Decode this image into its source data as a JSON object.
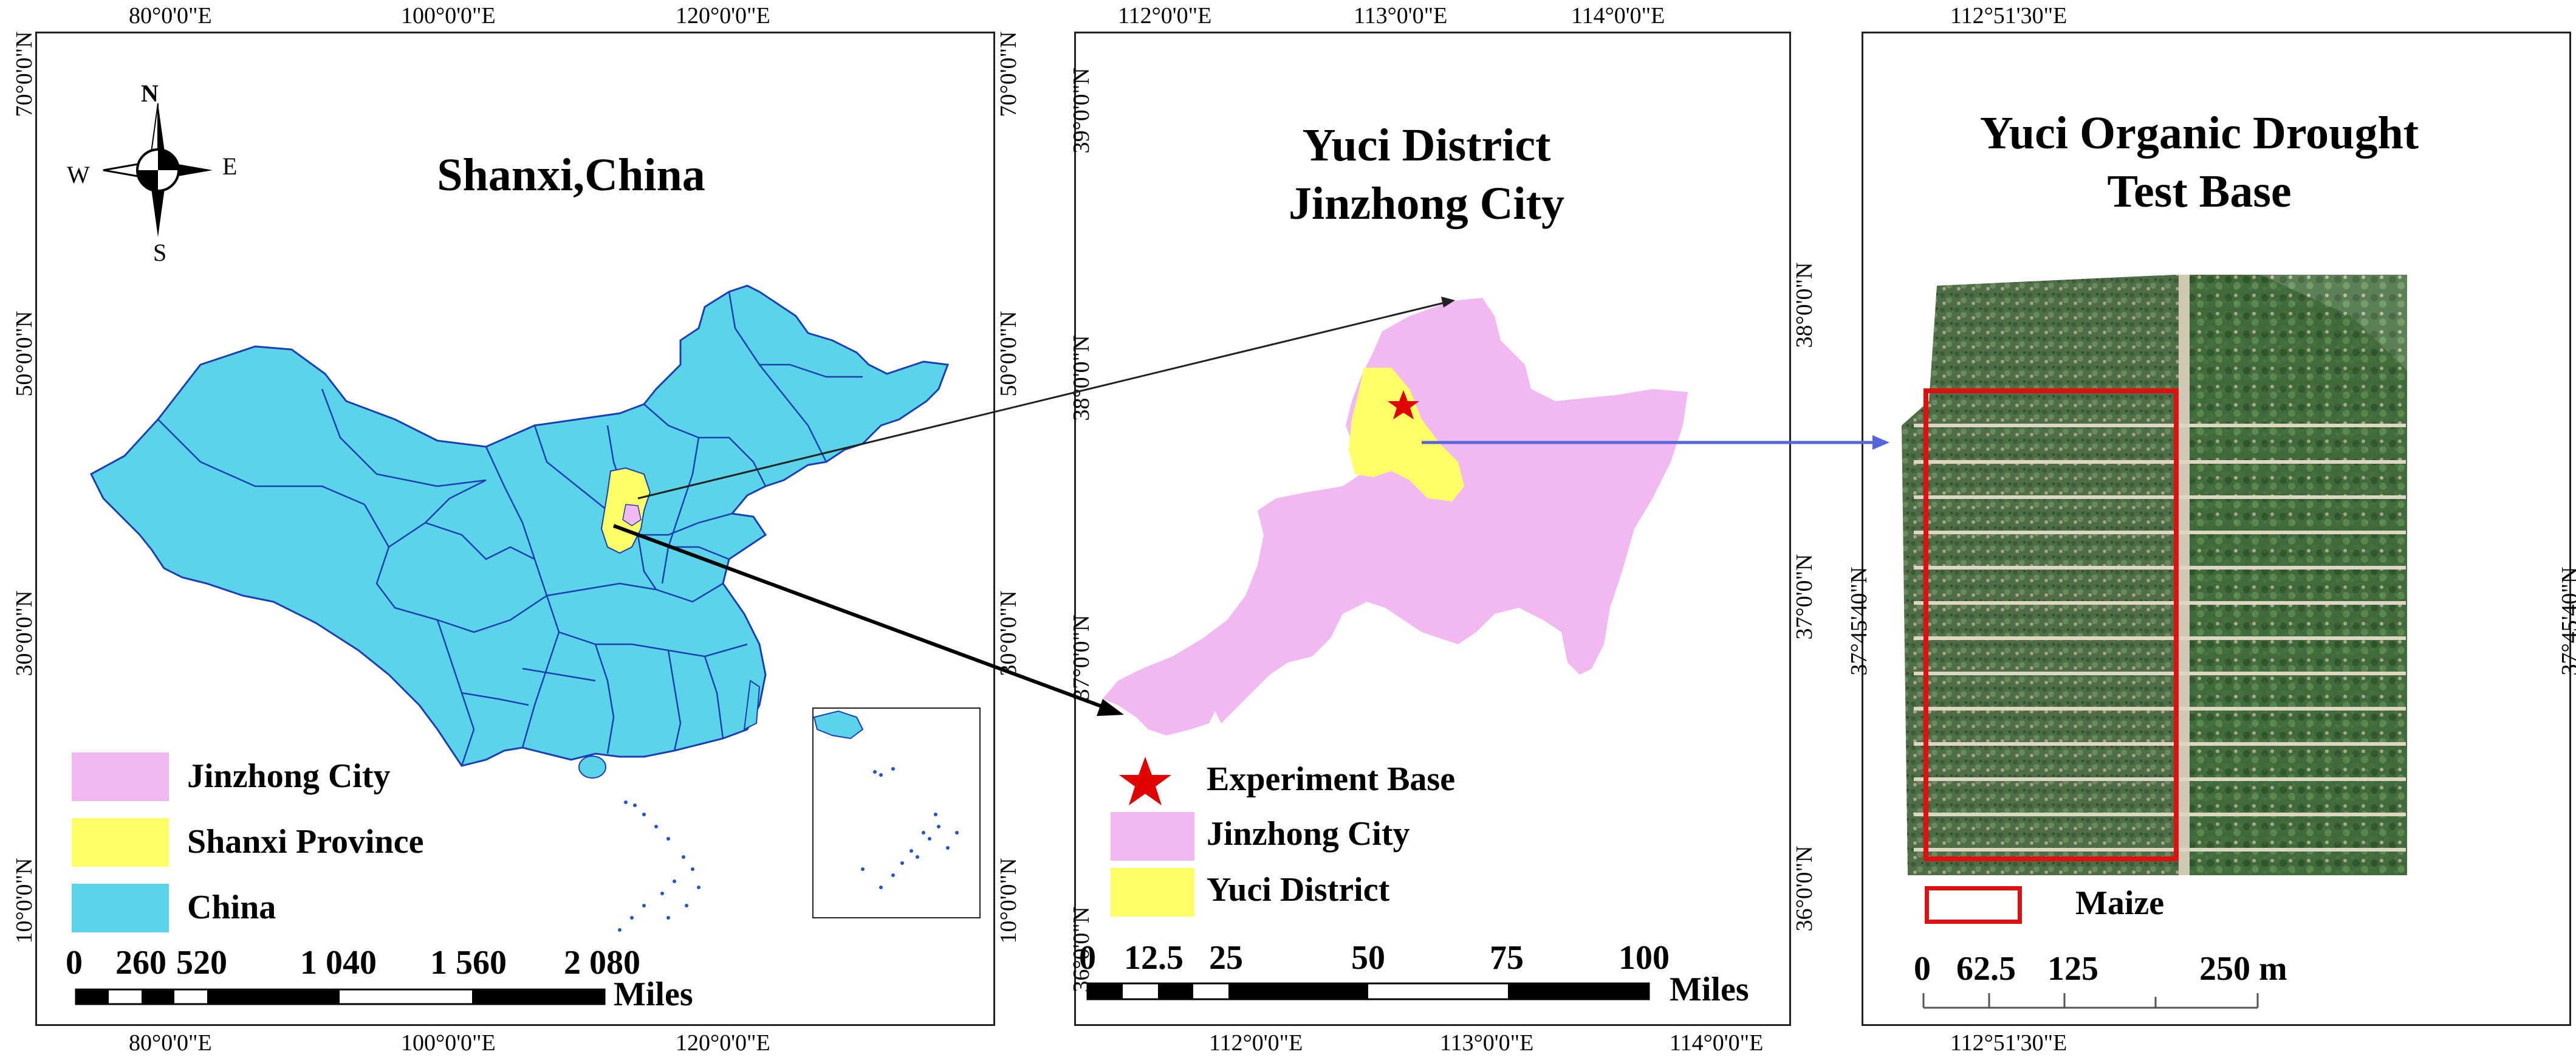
{
  "panel1": {
    "title": "Shanxi,China",
    "top_lon": [
      "80°0'0\"E",
      "100°0'0\"E",
      "120°0'0\"E"
    ],
    "bottom_lon": [
      "80°0'0\"E",
      "100°0'0\"E",
      "120°0'0\"E"
    ],
    "left_lat": [
      "70°0'0\"N",
      "50°0'0\"N",
      "30°0'0\"N",
      "10°0'0\"N"
    ],
    "compass": {
      "n": "N",
      "s": "S",
      "e": "E",
      "w": "W"
    },
    "legend": [
      "Jinzhong City",
      "Shanxi Province",
      "China"
    ],
    "scale_numbers": [
      "0",
      "260",
      "520",
      "1 040",
      "1 560",
      "2 080"
    ],
    "scale_unit": "Miles"
  },
  "panel2": {
    "title_line1": "Yuci District",
    "title_line2": "Jinzhong City",
    "top_lon": [
      "112°0'0\"E",
      "113°0'0\"E",
      "114°0'0\"E"
    ],
    "bottom_lon": [
      "112°0'0\"E",
      "113°0'0\"E",
      "114°0'0\"E"
    ],
    "left_lat": [
      "70°0'0\"N",
      "50°0'0\"N",
      "30°0'0\"N",
      "10°0'0\"N"
    ],
    "inner_left_lat": [
      "39°0'0\"N",
      "38°0'0\"N",
      "37°0'0\"N",
      "36°0'0\"N"
    ],
    "right_lat": [
      "38°0'0\"N",
      "37°0'0\"N",
      "36°0'0\"N"
    ],
    "legend": [
      "Experiment Base",
      "Jinzhong City",
      "Yuci District"
    ],
    "scale_numbers": [
      "0",
      "12.5",
      "25",
      "50",
      "75",
      "100"
    ],
    "scale_unit": "Miles"
  },
  "panel3": {
    "title_line1": "Yuci Organic Drought",
    "title_line2": "Test Base",
    "top_lon": "112°51'30\"E",
    "bottom_lon": "112°51'30\"E",
    "left_lat": "37°45'40\"N",
    "right_lat": "37°45'40\"N",
    "legend": "Maize",
    "scale_numbers": [
      "0",
      "62.5",
      "125",
      "250 m"
    ]
  },
  "colors": {
    "china": "#5bd3e8",
    "shanxi": "#ffff66",
    "jinzhong": "#f2b8f2",
    "yuci": "#ffff66",
    "star": "#e00000",
    "maize_box": "#e01010",
    "arrow_blue": "#5566dd"
  }
}
